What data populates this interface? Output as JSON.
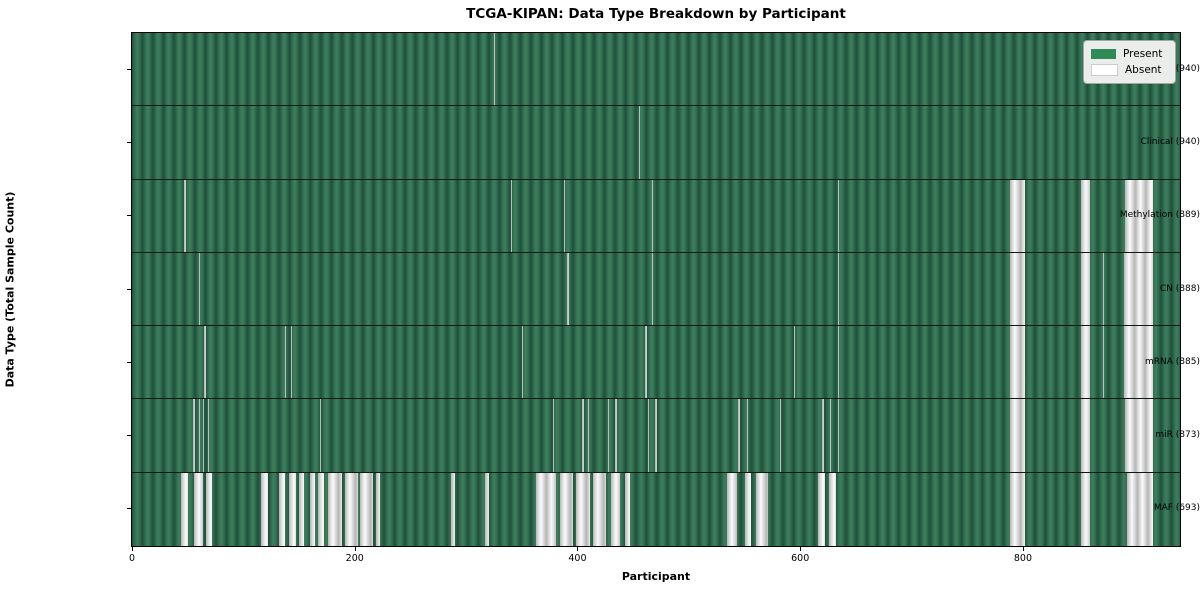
{
  "chart_data": {
    "type": "heatmap",
    "title": "TCGA-KIPAN: Data Type Breakdown by Participant",
    "xlabel": "Participant",
    "ylabel": "Data Type (Total Sample Count)",
    "x_ticks": [
      0,
      200,
      400,
      600,
      800
    ],
    "x_range": [
      0,
      941
    ],
    "total_participants": 941,
    "grid": false,
    "legend_position": "upper right",
    "colors": {
      "present": "#2e8b57",
      "absent": "#ffffff"
    },
    "legend": [
      {
        "label": "Present",
        "color": "#2e8b57"
      },
      {
        "label": "Absent",
        "color": "#ffffff"
      }
    ],
    "rows": [
      {
        "label": "BCR (940)",
        "data_type": "BCR",
        "present_count": 940,
        "absent_ranges": [
          [
            325,
            325
          ]
        ]
      },
      {
        "label": "Clinical (940)",
        "data_type": "Clinical",
        "present_count": 940,
        "absent_ranges": [
          [
            455,
            455
          ]
        ]
      },
      {
        "label": "Methylation (889)",
        "data_type": "Methylation",
        "present_count": 889,
        "absent_ranges": [
          [
            47,
            47
          ],
          [
            340,
            340
          ],
          [
            388,
            388
          ],
          [
            467,
            467
          ],
          [
            634,
            634
          ],
          [
            788,
            801
          ],
          [
            852,
            859
          ],
          [
            892,
            916
          ]
        ]
      },
      {
        "label": "CN (888)",
        "data_type": "CN",
        "present_count": 888,
        "absent_ranges": [
          [
            60,
            60
          ],
          [
            391,
            391
          ],
          [
            467,
            467
          ],
          [
            634,
            634
          ],
          [
            788,
            801
          ],
          [
            852,
            859
          ],
          [
            872,
            872
          ],
          [
            891,
            916
          ]
        ]
      },
      {
        "label": "mRNA (885)",
        "data_type": "mRNA",
        "present_count": 885,
        "absent_ranges": [
          [
            65,
            65
          ],
          [
            137,
            137
          ],
          [
            143,
            143
          ],
          [
            350,
            350
          ],
          [
            461,
            461
          ],
          [
            594,
            594
          ],
          [
            634,
            634
          ],
          [
            788,
            801
          ],
          [
            852,
            859
          ],
          [
            872,
            872
          ],
          [
            891,
            916
          ]
        ]
      },
      {
        "label": "miR (873)",
        "data_type": "miR",
        "present_count": 873,
        "absent_ranges": [
          [
            55,
            56
          ],
          [
            60,
            60
          ],
          [
            64,
            64
          ],
          [
            68,
            68
          ],
          [
            169,
            169
          ],
          [
            378,
            378
          ],
          [
            404,
            405
          ],
          [
            409,
            409
          ],
          [
            427,
            427
          ],
          [
            434,
            434
          ],
          [
            463,
            463
          ],
          [
            470,
            470
          ],
          [
            544,
            545
          ],
          [
            552,
            552
          ],
          [
            582,
            582
          ],
          [
            620,
            620
          ],
          [
            627,
            627
          ],
          [
            634,
            634
          ],
          [
            788,
            801
          ],
          [
            852,
            859
          ],
          [
            892,
            916
          ]
        ]
      },
      {
        "label": "MAF (693)",
        "data_type": "MAF",
        "present_count": 693,
        "absent_ranges": [
          [
            44,
            49
          ],
          [
            56,
            63
          ],
          [
            66,
            71
          ],
          [
            116,
            121
          ],
          [
            132,
            136
          ],
          [
            141,
            146
          ],
          [
            150,
            153
          ],
          [
            160,
            163
          ],
          [
            167,
            171
          ],
          [
            176,
            188
          ],
          [
            191,
            202
          ],
          [
            205,
            215
          ],
          [
            219,
            222
          ],
          [
            286,
            289
          ],
          [
            317,
            320
          ],
          [
            363,
            380
          ],
          [
            384,
            395
          ],
          [
            399,
            410
          ],
          [
            414,
            425
          ],
          [
            430,
            437
          ],
          [
            443,
            446
          ],
          [
            534,
            542
          ],
          [
            550,
            555
          ],
          [
            560,
            570
          ],
          [
            616,
            621
          ],
          [
            626,
            631
          ],
          [
            788,
            801
          ],
          [
            852,
            859
          ],
          [
            893,
            916
          ]
        ]
      }
    ]
  }
}
